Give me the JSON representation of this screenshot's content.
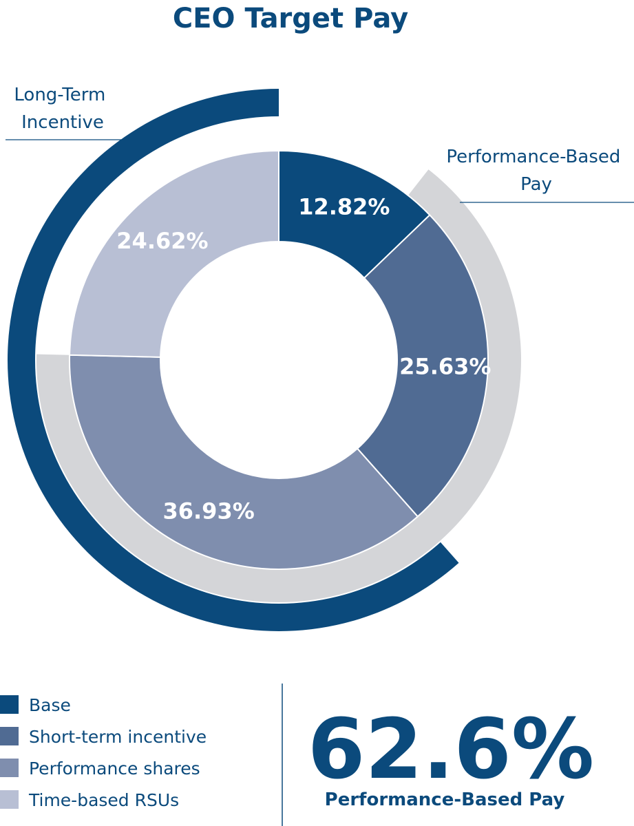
{
  "chart_data": {
    "type": "pie",
    "title": "CEO Target Pay",
    "categories": [
      "Base",
      "Short-term incentive",
      "Performance shares",
      "Time-based RSUs"
    ],
    "values": [
      12.82,
      25.63,
      36.93,
      24.62
    ],
    "value_labels": [
      "12.82%",
      "25.63%",
      "36.93%",
      "24.62%"
    ],
    "colors": [
      "#0b4a7c",
      "#506b93",
      "#7f8eae",
      "#b8bfd4"
    ],
    "outer_rings": [
      {
        "label": "Long-Term Incentive",
        "label_lines": [
          "Long-Term",
          "Incentive"
        ],
        "value": 61.55,
        "color": "#0b4a7c"
      },
      {
        "label": "Performance-Based Pay",
        "label_lines": [
          "Performance-Based",
          "Pay"
        ],
        "value": 62.56,
        "color": "#d4d5d8"
      }
    ],
    "legend_position": "bottom-left"
  },
  "summary": {
    "value": "62.6%",
    "caption": "Performance-Based Pay"
  }
}
